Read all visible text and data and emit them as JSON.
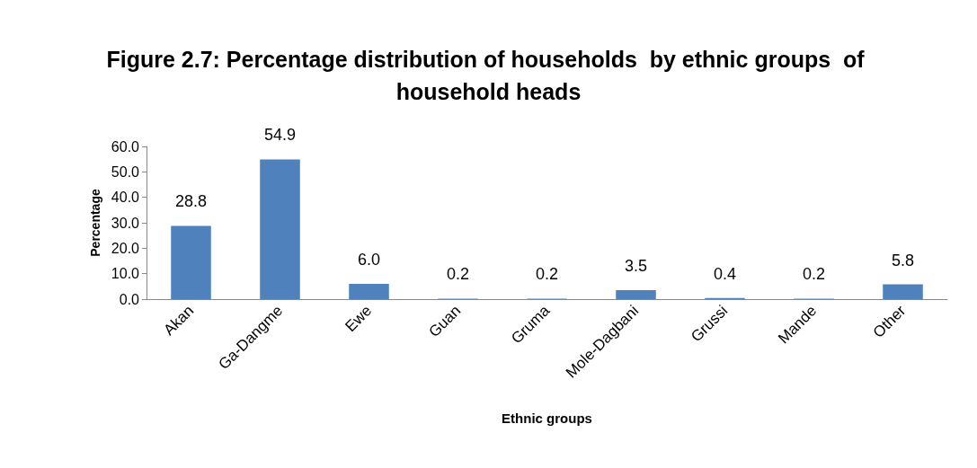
{
  "chart_data": {
    "type": "bar",
    "title": "Figure 2.7: Percentage distribution of households  by ethnic groups  of household heads",
    "xlabel": "Ethnic groups",
    "ylabel": "Percentage",
    "categories": [
      "Akan",
      "Ga-Dangme",
      "Ewe",
      "Guan",
      "Gruma",
      "Mole-Dagbani",
      "Grussi",
      "Mande",
      "Other"
    ],
    "values": [
      28.8,
      54.9,
      6.0,
      0.2,
      0.2,
      3.5,
      0.4,
      0.2,
      5.8
    ],
    "value_labels": [
      "28.8",
      "54.9",
      "6.0",
      "0.2",
      "0.2",
      "3.5",
      "0.4",
      "0.2",
      "5.8"
    ],
    "color": "#4f81bd",
    "ylim": [
      0,
      60
    ],
    "yticks": [
      {
        "value": 0,
        "label": "0.0"
      },
      {
        "value": 10,
        "label": "10.0"
      },
      {
        "value": 20,
        "label": "20.0"
      },
      {
        "value": 30,
        "label": "30.0"
      },
      {
        "value": 40,
        "label": "40.0"
      },
      {
        "value": 50,
        "label": "50.0"
      },
      {
        "value": 60,
        "label": "60.0"
      }
    ],
    "grid": false
  }
}
